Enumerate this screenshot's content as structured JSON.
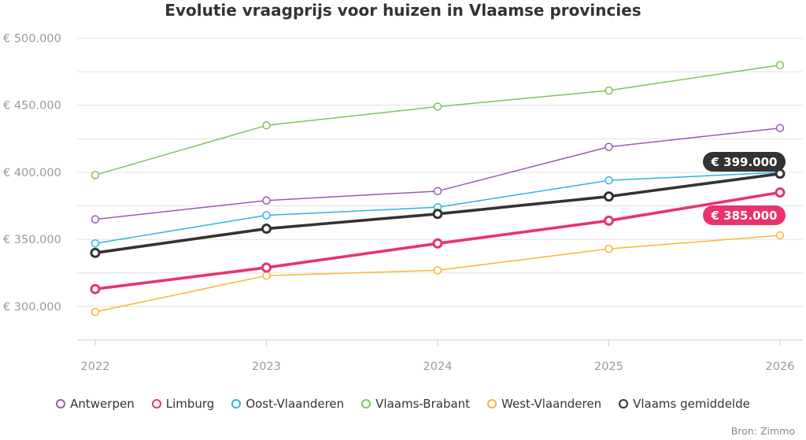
{
  "chart_data": {
    "type": "line",
    "title": "Evolutie vraagprijs voor huizen in Vlaamse provincies",
    "x": [
      "2022",
      "2023",
      "2024",
      "2025",
      "2026"
    ],
    "y_ticks": [
      "€ 300.000",
      "€ 350.000",
      "€ 400.000",
      "€ 450.000",
      "€ 500.000"
    ],
    "ylim": [
      275000,
      505000
    ],
    "grid": true,
    "legend_position": "bottom",
    "series": [
      {
        "name": "Antwerpen",
        "color": "#9b59b6",
        "emphasis": false,
        "values": [
          365000,
          379000,
          386000,
          419000,
          433000
        ]
      },
      {
        "name": "Limburg",
        "color": "#e8336d",
        "emphasis": true,
        "values": [
          313000,
          329000,
          347000,
          364000,
          385000
        ]
      },
      {
        "name": "Oost-Vlaanderen",
        "color": "#29b6e0",
        "emphasis": false,
        "values": [
          347000,
          368000,
          374000,
          394000,
          400000
        ]
      },
      {
        "name": "Vlaams-Brabant",
        "color": "#7cc55d",
        "emphasis": false,
        "values": [
          398000,
          435000,
          449000,
          461000,
          480000
        ]
      },
      {
        "name": "West-Vlaanderen",
        "color": "#f5b731",
        "emphasis": false,
        "values": [
          296000,
          323000,
          327000,
          343000,
          353000
        ]
      },
      {
        "name": "Vlaams gemiddelde",
        "color": "#333333",
        "emphasis": true,
        "values": [
          340000,
          358000,
          369000,
          382000,
          399000
        ]
      }
    ],
    "annotations": [
      {
        "text": "€ 399.000",
        "series": "Vlaams gemiddelde",
        "x": "2026",
        "color": "#333333"
      },
      {
        "text": "€ 385.000",
        "series": "Limburg",
        "x": "2026",
        "color": "#e8336d"
      }
    ]
  },
  "source": "Bron: Zimmo"
}
